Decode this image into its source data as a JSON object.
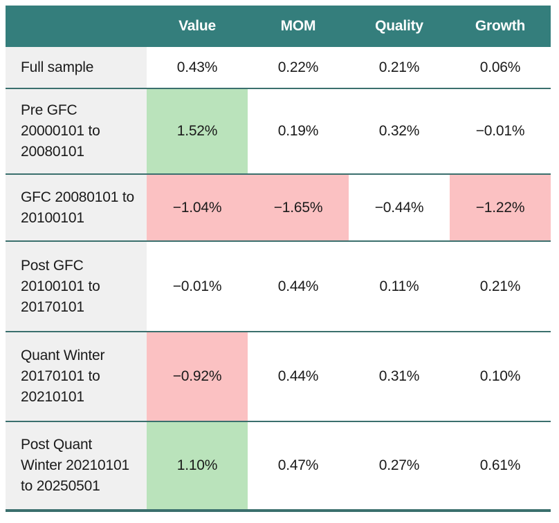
{
  "table": {
    "columns": [
      "",
      "Value",
      "MOM",
      "Quality",
      "Growth"
    ],
    "rows": [
      {
        "label": "Full sample",
        "cells": [
          "0.43%",
          "0.22%",
          "0.21%",
          "0.06%"
        ],
        "highlights": [
          "none",
          "none",
          "none",
          "none"
        ]
      },
      {
        "label": "Pre GFC 20000101 to 20080101",
        "cells": [
          "1.52%",
          "0.19%",
          "0.32%",
          "−0.01%"
        ],
        "highlights": [
          "green",
          "none",
          "none",
          "none"
        ]
      },
      {
        "label": "GFC 20080101 to 20100101",
        "cells": [
          "−1.04%",
          "−1.65%",
          "−0.44%",
          "−1.22%"
        ],
        "highlights": [
          "red",
          "red",
          "none",
          "red"
        ]
      },
      {
        "label": "Post GFC 20100101 to 20170101",
        "cells": [
          "−0.01%",
          "0.44%",
          "0.11%",
          "0.21%"
        ],
        "highlights": [
          "none",
          "none",
          "none",
          "none"
        ]
      },
      {
        "label": "Quant Winter 20170101 to 20210101",
        "cells": [
          "−0.92%",
          "0.44%",
          "0.31%",
          "0.10%"
        ],
        "highlights": [
          "red",
          "none",
          "none",
          "none"
        ]
      },
      {
        "label": "Post Quant Winter 20210101 to 20250501",
        "cells": [
          "1.10%",
          "0.47%",
          "0.27%",
          "0.61%"
        ],
        "highlights": [
          "green",
          "none",
          "none",
          "none"
        ]
      }
    ],
    "colors": {
      "header_bg": "#347e7c",
      "header_text": "#ffffff",
      "row_border": "#3a6f6d",
      "label_bg": "#f0f0f0",
      "positive_highlight": "#bae3bb",
      "negative_highlight": "#fbc1c2",
      "body_text": "#1a1a1a"
    }
  },
  "chart_data": {
    "type": "table",
    "title": "",
    "columns": [
      "",
      "Value",
      "MOM",
      "Quality",
      "Growth"
    ],
    "rows": [
      [
        "Full sample",
        "0.43%",
        "0.22%",
        "0.21%",
        "0.06%"
      ],
      [
        "Pre GFC 20000101 to 20080101",
        "1.52%",
        "0.19%",
        "0.32%",
        "−0.01%"
      ],
      [
        "GFC 20080101 to 20100101",
        "−1.04%",
        "−1.65%",
        "−0.44%",
        "−1.22%"
      ],
      [
        "Post GFC 20100101 to 20170101",
        "−0.01%",
        "0.44%",
        "0.11%",
        "0.21%"
      ],
      [
        "Quant Winter 20170101 to 20210101",
        "−0.92%",
        "0.44%",
        "0.31%",
        "0.10%"
      ],
      [
        "Post Quant Winter 20210101 to 20250501",
        "1.10%",
        "0.47%",
        "0.27%",
        "0.61%"
      ]
    ],
    "highlighted_cells": {
      "green": [
        [
          "Pre GFC 20000101 to 20080101",
          "Value"
        ],
        [
          "Post Quant Winter 20210101 to 20250501",
          "Value"
        ]
      ],
      "red": [
        [
          "GFC 20080101 to 20100101",
          "Value"
        ],
        [
          "GFC 20080101 to 20100101",
          "MOM"
        ],
        [
          "GFC 20080101 to 20100101",
          "Growth"
        ],
        [
          "Quant Winter 20170101 to 20210101",
          "Value"
        ]
      ]
    },
    "layout": {
      "grid": "horizontal teal separators between rows, no vertical lines",
      "legend_position": "none"
    }
  }
}
